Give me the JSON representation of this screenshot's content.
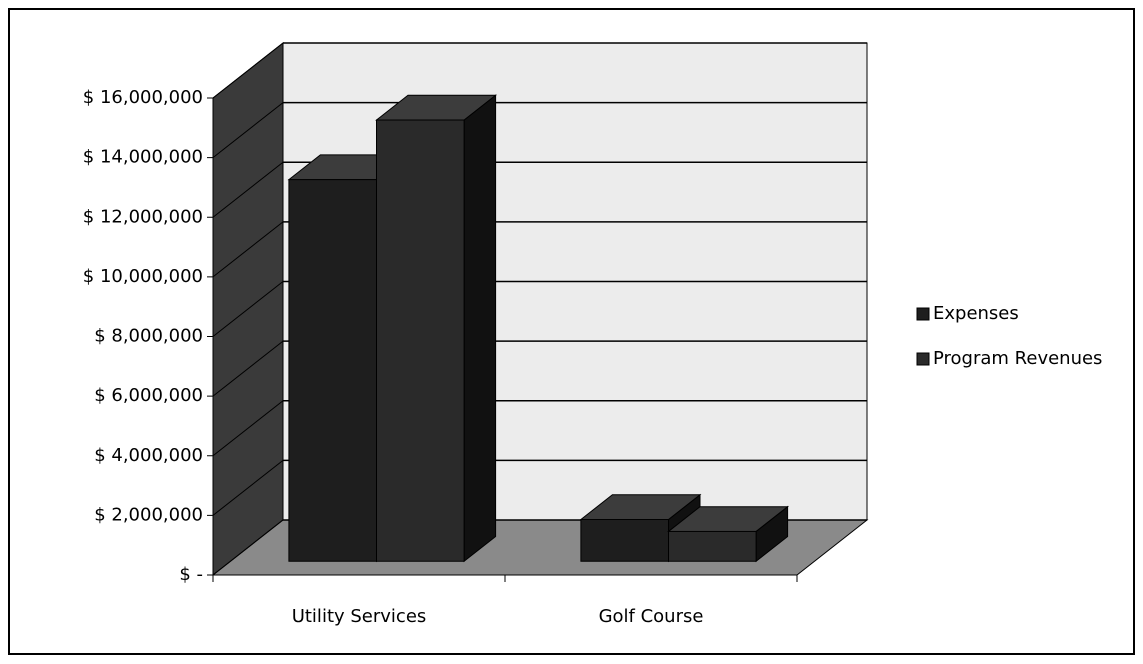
{
  "chart_data": {
    "type": "bar3d",
    "categories": [
      "Utility Services",
      "Golf Course"
    ],
    "series": [
      {
        "name": "Expenses",
        "color": "#1e1e1e",
        "values": [
          12800000,
          1400000
        ]
      },
      {
        "name": "Program Revenues",
        "color": "#2a2a2a",
        "values": [
          14800000,
          1000000
        ]
      }
    ],
    "ylim": [
      0,
      16000000
    ],
    "yticks": [
      {
        "value": 0,
        "label": "$ -"
      },
      {
        "value": 2000000,
        "label": "$ 2,000,000"
      },
      {
        "value": 4000000,
        "label": "$ 4,000,000"
      },
      {
        "value": 6000000,
        "label": "$ 6,000,000"
      },
      {
        "value": 8000000,
        "label": "$ 8,000,000"
      },
      {
        "value": 10000000,
        "label": "$ 10,000,000"
      },
      {
        "value": 12000000,
        "label": "$ 12,000,000"
      },
      {
        "value": 14000000,
        "label": "$ 14,000,000"
      },
      {
        "value": 16000000,
        "label": "$ 16,000,000"
      }
    ],
    "grid": true,
    "legend": "right"
  }
}
